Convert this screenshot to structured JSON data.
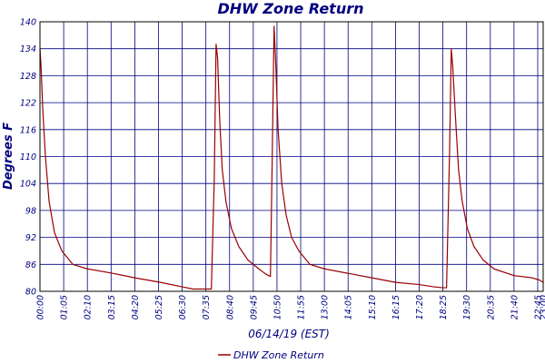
{
  "chart_data": {
    "type": "line",
    "title": "DHW Zone Return",
    "xlabel": "06/14/19 (EST)",
    "ylabel": "Degrees F",
    "ylim": [
      80,
      140
    ],
    "yticks": [
      "80",
      "86",
      "92",
      "98",
      "104",
      "110",
      "116",
      "122",
      "128",
      "134",
      "140"
    ],
    "xlim_minutes": [
      0,
      1380
    ],
    "xticks": [
      {
        "label": "00:00",
        "minutes": 0
      },
      {
        "label": "01:05",
        "minutes": 65
      },
      {
        "label": "02:10",
        "minutes": 130
      },
      {
        "label": "03:15",
        "minutes": 195
      },
      {
        "label": "04:20",
        "minutes": 260
      },
      {
        "label": "05:25",
        "minutes": 325
      },
      {
        "label": "06:30",
        "minutes": 390
      },
      {
        "label": "07:35",
        "minutes": 455
      },
      {
        "label": "08:40",
        "minutes": 520
      },
      {
        "label": "09:45",
        "minutes": 585
      },
      {
        "label": "10:50",
        "minutes": 650
      },
      {
        "label": "11:55",
        "minutes": 715
      },
      {
        "label": "13:00",
        "minutes": 780
      },
      {
        "label": "14:05",
        "minutes": 845
      },
      {
        "label": "15:10",
        "minutes": 910
      },
      {
        "label": "16:15",
        "minutes": 975
      },
      {
        "label": "17:20",
        "minutes": 1040
      },
      {
        "label": "18:25",
        "minutes": 1105
      },
      {
        "label": "19:30",
        "minutes": 1170
      },
      {
        "label": "20:35",
        "minutes": 1235
      },
      {
        "label": "21:40",
        "minutes": 1300
      },
      {
        "label": "22:45",
        "minutes": 1365
      },
      {
        "label": "23:00",
        "minutes": 1380
      }
    ],
    "grid": true,
    "legend_position": "bottom-left",
    "series": [
      {
        "name": "DHW Zone Return",
        "color": "#990000",
        "points": [
          [
            0,
            134
          ],
          [
            3,
            130
          ],
          [
            8,
            120
          ],
          [
            15,
            110
          ],
          [
            25,
            100
          ],
          [
            40,
            93
          ],
          [
            60,
            89
          ],
          [
            90,
            86
          ],
          [
            130,
            85
          ],
          [
            200,
            84
          ],
          [
            260,
            83
          ],
          [
            330,
            82
          ],
          [
            390,
            81
          ],
          [
            420,
            80.5
          ],
          [
            460,
            80.5
          ],
          [
            470,
            80.5
          ],
          [
            478,
            105
          ],
          [
            483,
            135
          ],
          [
            487,
            132
          ],
          [
            493,
            118
          ],
          [
            500,
            107
          ],
          [
            510,
            100
          ],
          [
            525,
            94
          ],
          [
            545,
            90
          ],
          [
            570,
            87
          ],
          [
            600,
            85
          ],
          [
            620,
            83.8
          ],
          [
            632,
            83.3
          ],
          [
            637,
            110
          ],
          [
            642,
            139
          ],
          [
            646,
            132
          ],
          [
            653,
            116
          ],
          [
            663,
            104
          ],
          [
            675,
            97
          ],
          [
            690,
            92
          ],
          [
            710,
            89
          ],
          [
            740,
            86
          ],
          [
            780,
            85
          ],
          [
            845,
            84
          ],
          [
            910,
            83
          ],
          [
            975,
            82
          ],
          [
            1040,
            81.5
          ],
          [
            1080,
            81
          ],
          [
            1105,
            80.8
          ],
          [
            1115,
            80.8
          ],
          [
            1123,
            110
          ],
          [
            1128,
            134
          ],
          [
            1132,
            130
          ],
          [
            1140,
            118
          ],
          [
            1148,
            107
          ],
          [
            1158,
            100
          ],
          [
            1172,
            94
          ],
          [
            1190,
            90
          ],
          [
            1215,
            87
          ],
          [
            1245,
            85
          ],
          [
            1300,
            83.5
          ],
          [
            1350,
            83
          ],
          [
            1370,
            82.5
          ],
          [
            1380,
            82
          ]
        ]
      }
    ]
  }
}
